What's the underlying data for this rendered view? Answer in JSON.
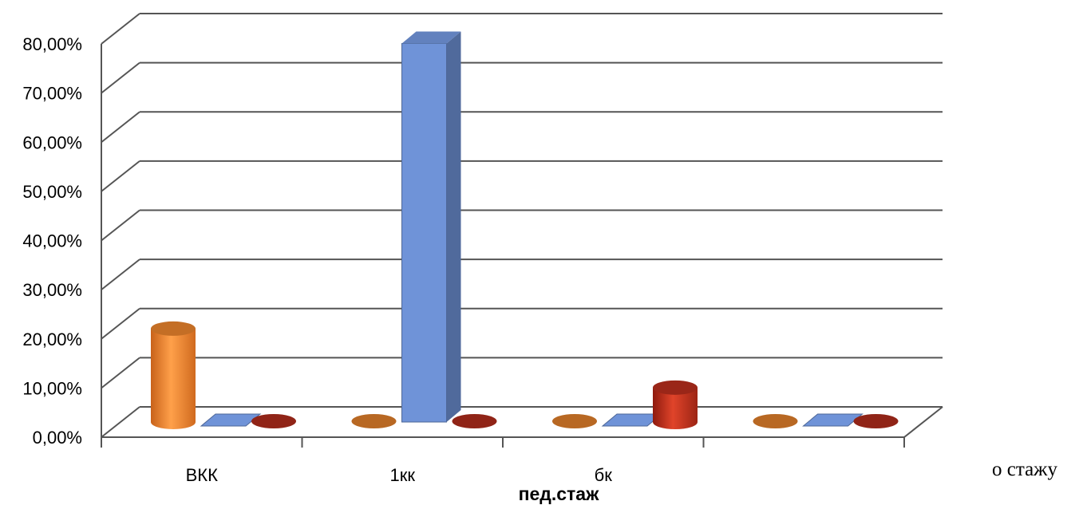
{
  "chart_data": {
    "type": "bar",
    "variant": "3d-clustered",
    "title": "",
    "xlabel": "пед.стаж",
    "ylabel": "",
    "ylim": [
      0,
      0.8
    ],
    "y_ticks": [
      "0,00%",
      "10,00%",
      "20,00%",
      "30,00%",
      "40,00%",
      "50,00%",
      "60,00%",
      "70,00%",
      "80,00%"
    ],
    "categories": [
      "ВКК",
      "1кк",
      "бк",
      ""
    ],
    "series": [
      {
        "shape": "cylinder",
        "color": "#f58a2e",
        "values": [
          0.19,
          0,
          0,
          0
        ]
      },
      {
        "shape": "box",
        "color": "#6f93d8",
        "values": [
          0,
          0.77,
          0,
          0
        ]
      },
      {
        "shape": "cylinder",
        "color": "#c0301e",
        "values": [
          0,
          0,
          0.07,
          0
        ]
      }
    ],
    "grid": true,
    "legend": "none"
  },
  "side_text": "о стажу"
}
